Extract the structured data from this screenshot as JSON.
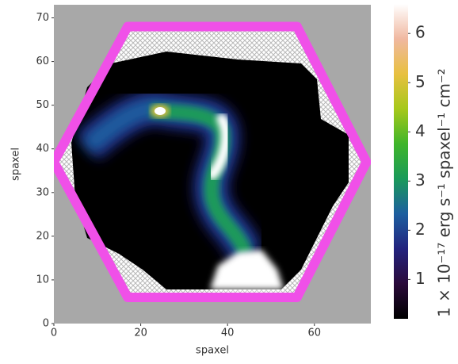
{
  "chart_data": {
    "type": "image",
    "xlabel": "spaxel",
    "ylabel": "spaxel",
    "xlim": [
      0,
      73
    ],
    "ylim": [
      0,
      73
    ],
    "xticks": [
      0,
      20,
      40,
      60
    ],
    "yticks": [
      0,
      10,
      20,
      30,
      40,
      50,
      60,
      70
    ],
    "colorbar": {
      "label": "1 × 10⁻¹⁷ erg s⁻¹ spaxel⁻¹ cm⁻²",
      "lim": [
        0.2,
        6.6
      ],
      "ticks": [
        1,
        2,
        3,
        4,
        5,
        6
      ],
      "colors": [
        "#000000",
        "#2a0a3a",
        "#23237e",
        "#1d5fa0",
        "#1a9a5a",
        "#3fb52a",
        "#a6c81a",
        "#e8c040",
        "#f0b8a0",
        "#ffffff"
      ]
    },
    "hexagon_color": "#f050e8"
  }
}
